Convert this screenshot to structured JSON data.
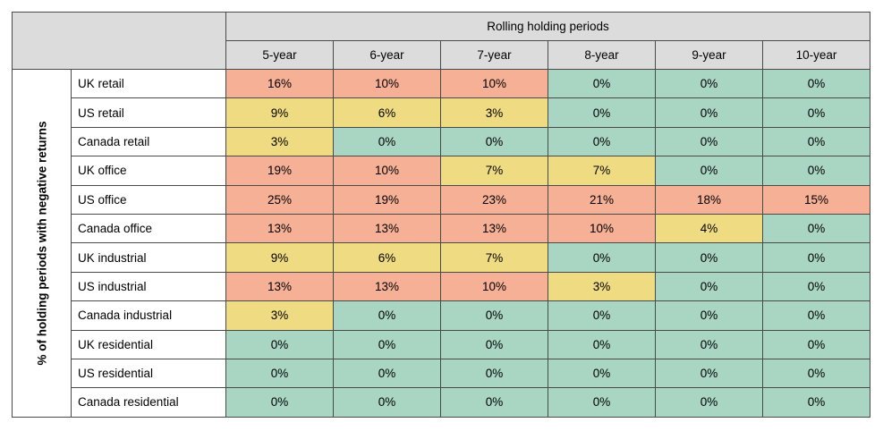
{
  "chart_data": {
    "type": "table",
    "title": "Rolling holding periods",
    "ylabel": "% of holding periods with negative returns",
    "columns": [
      "5-year",
      "6-year",
      "7-year",
      "8-year",
      "9-year",
      "10-year"
    ],
    "rows": [
      {
        "label": "UK retail",
        "values": [
          "16%",
          "10%",
          "10%",
          "0%",
          "0%",
          "0%"
        ],
        "colors": [
          "red",
          "red",
          "red",
          "green",
          "green",
          "green"
        ]
      },
      {
        "label": "US retail",
        "values": [
          "9%",
          "6%",
          "3%",
          "0%",
          "0%",
          "0%"
        ],
        "colors": [
          "yellow",
          "yellow",
          "yellow",
          "green",
          "green",
          "green"
        ]
      },
      {
        "label": "Canada retail",
        "values": [
          "3%",
          "0%",
          "0%",
          "0%",
          "0%",
          "0%"
        ],
        "colors": [
          "yellow",
          "green",
          "green",
          "green",
          "green",
          "green"
        ]
      },
      {
        "label": "UK office",
        "values": [
          "19%",
          "10%",
          "7%",
          "7%",
          "0%",
          "0%"
        ],
        "colors": [
          "red",
          "red",
          "yellow",
          "yellow",
          "green",
          "green"
        ]
      },
      {
        "label": "US office",
        "values": [
          "25%",
          "19%",
          "23%",
          "21%",
          "18%",
          "15%"
        ],
        "colors": [
          "red",
          "red",
          "red",
          "red",
          "red",
          "red"
        ]
      },
      {
        "label": "Canada office",
        "values": [
          "13%",
          "13%",
          "13%",
          "10%",
          "4%",
          "0%"
        ],
        "colors": [
          "red",
          "red",
          "red",
          "red",
          "yellow",
          "green"
        ]
      },
      {
        "label": "UK industrial",
        "values": [
          "9%",
          "6%",
          "7%",
          "0%",
          "0%",
          "0%"
        ],
        "colors": [
          "yellow",
          "yellow",
          "yellow",
          "green",
          "green",
          "green"
        ]
      },
      {
        "label": "US industrial",
        "values": [
          "13%",
          "13%",
          "10%",
          "3%",
          "0%",
          "0%"
        ],
        "colors": [
          "red",
          "red",
          "red",
          "yellow",
          "green",
          "green"
        ]
      },
      {
        "label": "Canada industrial",
        "values": [
          "3%",
          "0%",
          "0%",
          "0%",
          "0%",
          "0%"
        ],
        "colors": [
          "yellow",
          "green",
          "green",
          "green",
          "green",
          "green"
        ]
      },
      {
        "label": "UK residential",
        "values": [
          "0%",
          "0%",
          "0%",
          "0%",
          "0%",
          "0%"
        ],
        "colors": [
          "green",
          "green",
          "green",
          "green",
          "green",
          "green"
        ]
      },
      {
        "label": "US residential",
        "values": [
          "0%",
          "0%",
          "0%",
          "0%",
          "0%",
          "0%"
        ],
        "colors": [
          "green",
          "green",
          "green",
          "green",
          "green",
          "green"
        ]
      },
      {
        "label": "Canada residential",
        "values": [
          "0%",
          "0%",
          "0%",
          "0%",
          "0%",
          "0%"
        ],
        "colors": [
          "green",
          "green",
          "green",
          "green",
          "green",
          "green"
        ]
      }
    ],
    "color_scale": {
      "red": "#f6b096",
      "yellow": "#efdb82",
      "green": "#a9d5c3"
    }
  }
}
